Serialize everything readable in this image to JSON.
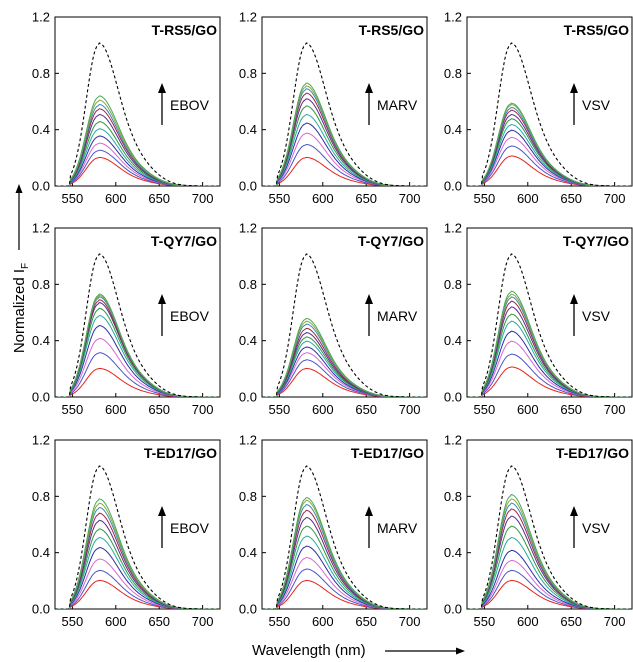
{
  "figure": {
    "xlabel": "Wavelength (nm)",
    "ylabel": "Normalized I",
    "ylabel_sub": "F"
  },
  "chart_data": [
    {
      "type": "line",
      "row": 0,
      "col": 0,
      "title": "T-RS5/GO",
      "annotation": "EBOV",
      "x_ticks": [
        550,
        600,
        650,
        700
      ],
      "y_ticks": [
        "0.0",
        "0.4",
        "0.8",
        "1.2"
      ],
      "xlim": [
        530,
        720
      ],
      "ylim": [
        0,
        1.2
      ],
      "peak_x": 580,
      "reference_peak": 1.0,
      "peaks": [
        0.2,
        0.25,
        0.3,
        0.35,
        0.4,
        0.45,
        0.5,
        0.54,
        0.57,
        0.6,
        0.63
      ]
    },
    {
      "type": "line",
      "row": 0,
      "col": 1,
      "title": "T-RS5/GO",
      "annotation": "MARV",
      "x_ticks": [
        550,
        600,
        650,
        700
      ],
      "y_ticks": [
        "0.0",
        "0.4",
        "0.8",
        "1.2"
      ],
      "xlim": [
        530,
        720
      ],
      "ylim": [
        0,
        1.2
      ],
      "peak_x": 580,
      "reference_peak": 1.0,
      "peaks": [
        0.2,
        0.29,
        0.37,
        0.44,
        0.5,
        0.56,
        0.61,
        0.65,
        0.68,
        0.7,
        0.72
      ]
    },
    {
      "type": "line",
      "row": 0,
      "col": 2,
      "title": "T-RS5/GO",
      "annotation": "VSV",
      "x_ticks": [
        550,
        600,
        650,
        700
      ],
      "y_ticks": [
        "0.0",
        "0.4",
        "0.8",
        "1.2"
      ],
      "xlim": [
        530,
        720
      ],
      "ylim": [
        0,
        1.2
      ],
      "peak_x": 580,
      "reference_peak": 1.0,
      "peaks": [
        0.21,
        0.28,
        0.34,
        0.39,
        0.43,
        0.47,
        0.5,
        0.53,
        0.55,
        0.57,
        0.58
      ]
    },
    {
      "type": "line",
      "row": 1,
      "col": 0,
      "title": "T-QY7/GO",
      "annotation": "EBOV",
      "x_ticks": [
        550,
        600,
        650,
        700
      ],
      "y_ticks": [
        "0.0",
        "0.4",
        "0.8",
        "1.2"
      ],
      "xlim": [
        530,
        720
      ],
      "ylim": [
        0,
        1.2
      ],
      "peak_x": 580,
      "reference_peak": 1.0,
      "peaks": [
        0.2,
        0.31,
        0.41,
        0.5,
        0.57,
        0.62,
        0.66,
        0.68,
        0.7,
        0.71,
        0.72
      ]
    },
    {
      "type": "line",
      "row": 1,
      "col": 1,
      "title": "T-QY7/GO",
      "annotation": "MARV",
      "x_ticks": [
        550,
        600,
        650,
        700
      ],
      "y_ticks": [
        "0.0",
        "0.4",
        "0.8",
        "1.2"
      ],
      "xlim": [
        530,
        720
      ],
      "ylim": [
        0,
        1.2
      ],
      "peak_x": 580,
      "reference_peak": 1.0,
      "peaks": [
        0.2,
        0.26,
        0.31,
        0.35,
        0.39,
        0.42,
        0.45,
        0.48,
        0.51,
        0.53,
        0.55
      ]
    },
    {
      "type": "line",
      "row": 1,
      "col": 2,
      "title": "T-QY7/GO",
      "annotation": "VSV",
      "x_ticks": [
        550,
        600,
        650,
        700
      ],
      "y_ticks": [
        "0.0",
        "0.4",
        "0.8",
        "1.2"
      ],
      "xlim": [
        530,
        720
      ],
      "ylim": [
        0,
        1.2
      ],
      "peak_x": 580,
      "reference_peak": 1.0,
      "peaks": [
        0.21,
        0.3,
        0.39,
        0.46,
        0.53,
        0.58,
        0.63,
        0.67,
        0.7,
        0.72,
        0.74
      ]
    },
    {
      "type": "line",
      "row": 2,
      "col": 0,
      "title": "T-ED17/GO",
      "annotation": "EBOV",
      "x_ticks": [
        550,
        600,
        650,
        700
      ],
      "y_ticks": [
        "0.0",
        "0.4",
        "0.8",
        "1.2"
      ],
      "xlim": [
        530,
        720
      ],
      "ylim": [
        0,
        1.2
      ],
      "peak_x": 580,
      "reference_peak": 1.0,
      "peaks": [
        0.2,
        0.27,
        0.35,
        0.43,
        0.5,
        0.56,
        0.62,
        0.67,
        0.71,
        0.74,
        0.77
      ]
    },
    {
      "type": "line",
      "row": 2,
      "col": 1,
      "title": "T-ED17/GO",
      "annotation": "MARV",
      "x_ticks": [
        550,
        600,
        650,
        700
      ],
      "y_ticks": [
        "0.0",
        "0.4",
        "0.8",
        "1.2"
      ],
      "xlim": [
        530,
        720
      ],
      "ylim": [
        0,
        1.2
      ],
      "peak_x": 580,
      "reference_peak": 1.0,
      "peaks": [
        0.2,
        0.28,
        0.36,
        0.44,
        0.51,
        0.58,
        0.64,
        0.69,
        0.73,
        0.76,
        0.78
      ]
    },
    {
      "type": "line",
      "row": 2,
      "col": 2,
      "title": "T-ED17/GO",
      "annotation": "VSV",
      "x_ticks": [
        550,
        600,
        650,
        700
      ],
      "y_ticks": [
        "0.0",
        "0.4",
        "0.8",
        "1.2"
      ],
      "xlim": [
        530,
        720
      ],
      "ylim": [
        0,
        1.2
      ],
      "peak_x": 580,
      "reference_peak": 1.0,
      "peaks": [
        0.2,
        0.27,
        0.34,
        0.41,
        0.5,
        0.58,
        0.65,
        0.7,
        0.74,
        0.77,
        0.8
      ]
    }
  ],
  "series_colors": [
    "#e8251f",
    "#4a55c8",
    "#d868d0",
    "#2d2da8",
    "#2aa8a0",
    "#2a9a3a",
    "#5a2a8a",
    "#9a2a4a",
    "#3a8ab8",
    "#8aa83a",
    "#4aa85a"
  ],
  "reference_style": "dashed-black"
}
